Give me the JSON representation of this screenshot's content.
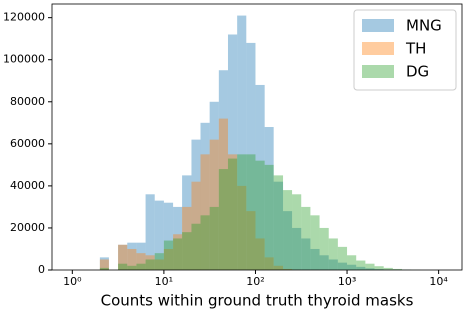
{
  "chart_data": {
    "type": "histogram",
    "xlabel": "Counts within ground truth thyroid masks",
    "xscale": "log",
    "bins": [
      1.58,
      2,
      2.51,
      3.16,
      3.98,
      5.01,
      6.31,
      7.94,
      10,
      12.6,
      15.8,
      20,
      25.1,
      31.6,
      39.8,
      50.1,
      63.1,
      79.4,
      100,
      126,
      158,
      200,
      251,
      316,
      398,
      501,
      631,
      794,
      1000,
      1259,
      1585,
      1995,
      2512,
      3162,
      3981,
      5012,
      6310,
      7943,
      10000,
      12589,
      15849
    ],
    "series": [
      {
        "name": "MNG",
        "color": "#1f77b4",
        "values": [
          0,
          6000,
          0,
          12000,
          13000,
          13000,
          36000,
          33000,
          32000,
          30000,
          45000,
          62000,
          70000,
          80000,
          95000,
          112000,
          121000,
          108000,
          88000,
          68000,
          42000,
          28000,
          20000,
          15000,
          10000,
          7000,
          5000,
          3500,
          2500,
          1500,
          800,
          400,
          200,
          100,
          50,
          0,
          0,
          0,
          0,
          0
        ]
      },
      {
        "name": "TH",
        "color": "#ff7f0e",
        "values": [
          0,
          5000,
          0,
          12000,
          10000,
          8000,
          7000,
          5000,
          10000,
          17000,
          30000,
          42000,
          55000,
          62000,
          72000,
          55000,
          40000,
          28000,
          15000,
          6000,
          2000,
          500,
          100,
          0,
          0,
          0,
          0,
          0,
          0,
          0,
          0,
          0,
          0,
          0,
          0,
          0,
          0,
          0,
          0,
          0
        ]
      },
      {
        "name": "DG",
        "color": "#2ca02c",
        "values": [
          0,
          1000,
          0,
          3000,
          2000,
          3000,
          5000,
          8000,
          14000,
          15000,
          18000,
          22000,
          26000,
          30000,
          48000,
          53000,
          55000,
          55000,
          52000,
          50000,
          45000,
          38000,
          36000,
          30000,
          26000,
          20000,
          15000,
          11000,
          7000,
          4500,
          3000,
          1800,
          1000,
          500,
          200,
          100,
          0,
          0,
          0,
          0
        ]
      }
    ],
    "xlim": [
      0.6,
      18000
    ],
    "xticks": [
      {
        "value": 1,
        "label": "10⁰"
      },
      {
        "value": 10,
        "label": "10¹"
      },
      {
        "value": 100,
        "label": "10²"
      },
      {
        "value": 1000,
        "label": "10³"
      },
      {
        "value": 10000,
        "label": "10⁴"
      }
    ],
    "ylim": [
      0,
      126500
    ],
    "yticks": [
      0,
      20000,
      40000,
      60000,
      80000,
      100000,
      120000
    ],
    "legend": "upper right",
    "opacity": 0.4
  }
}
